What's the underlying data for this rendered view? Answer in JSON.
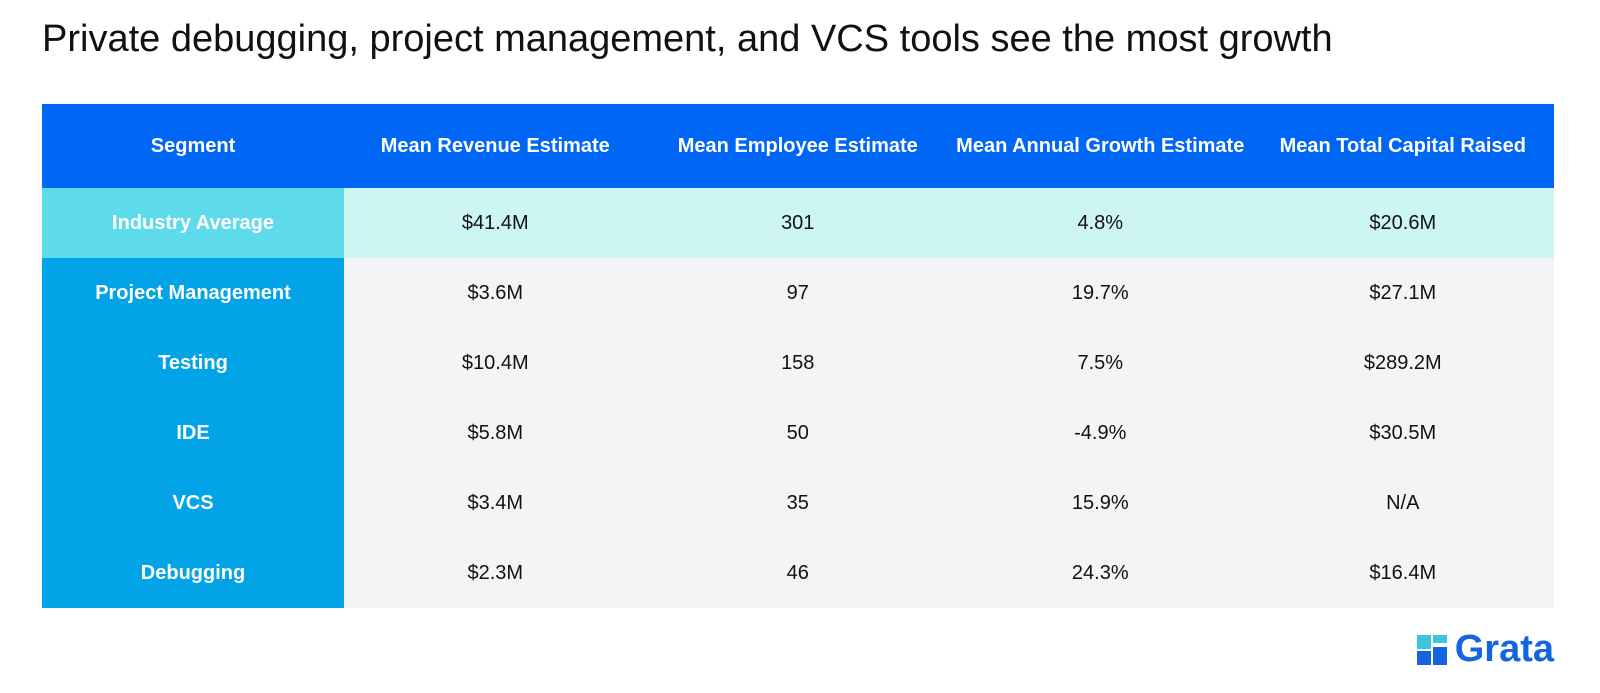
{
  "title": "Private debugging, project management, and VCS tools see the most growth",
  "table": {
    "headers": [
      "Segment",
      "Mean Revenue Estimate",
      "Mean Employee Estimate",
      "Mean Annual Growth Estimate",
      "Mean Total Capital Raised"
    ],
    "rows": [
      [
        "Industry Average",
        "$41.4M",
        "301",
        "4.8%",
        "$20.6M"
      ],
      [
        "Project Management",
        "$3.6M",
        "97",
        "19.7%",
        "$27.1M"
      ],
      [
        "Testing",
        "$10.4M",
        "158",
        "7.5%",
        "$289.2M"
      ],
      [
        "IDE",
        "$5.8M",
        "50",
        "-4.9%",
        "$30.5M"
      ],
      [
        "VCS",
        "$3.4M",
        "35",
        "15.9%",
        "N/A"
      ],
      [
        "Debugging",
        "$2.3M",
        "46",
        "24.3%",
        "$16.4M"
      ]
    ]
  },
  "logo": "Grata"
}
